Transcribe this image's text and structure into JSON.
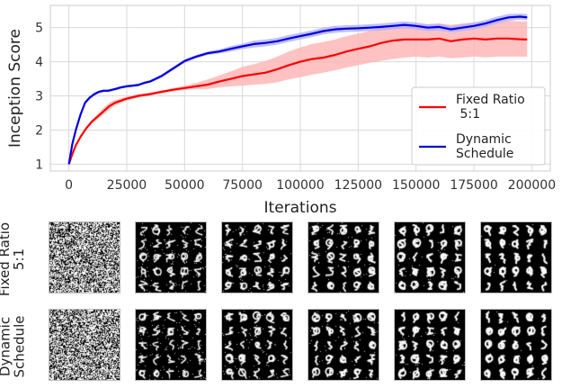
{
  "chart_data": {
    "type": "line",
    "xlabel": "Iterations",
    "ylabel": "Inception Score",
    "xlim": [
      -8000,
      208000
    ],
    "ylim": [
      0.8,
      5.65
    ],
    "xticks": [
      "0",
      "25000",
      "50000",
      "75000",
      "100000",
      "125000",
      "150000",
      "175000",
      "200000"
    ],
    "yticks": [
      "1",
      "2",
      "3",
      "4",
      "5"
    ],
    "grid": true,
    "legend_position": "bottom-right",
    "series": [
      {
        "name": "Fixed Ratio\n 5:1",
        "color": "#ff0000",
        "band_color": "#ffb3b3",
        "x": [
          0,
          1500,
          3000,
          5000,
          7500,
          10000,
          12500,
          15000,
          17500,
          20000,
          25000,
          30000,
          35000,
          40000,
          45000,
          50000,
          55000,
          60000,
          65000,
          70000,
          75000,
          80000,
          85000,
          90000,
          95000,
          100000,
          105000,
          110000,
          115000,
          120000,
          125000,
          130000,
          135000,
          140000,
          145000,
          150000,
          155000,
          160000,
          165000,
          170000,
          175000,
          180000,
          185000,
          190000,
          195000,
          198000
        ],
        "y": [
          1.0,
          1.3,
          1.55,
          1.8,
          2.05,
          2.25,
          2.4,
          2.55,
          2.7,
          2.8,
          2.92,
          3.0,
          3.05,
          3.12,
          3.18,
          3.23,
          3.28,
          3.33,
          3.42,
          3.5,
          3.58,
          3.63,
          3.68,
          3.78,
          3.9,
          4.0,
          4.08,
          4.12,
          4.2,
          4.3,
          4.38,
          4.45,
          4.55,
          4.62,
          4.65,
          4.65,
          4.65,
          4.68,
          4.6,
          4.65,
          4.68,
          4.65,
          4.68,
          4.68,
          4.66,
          4.65
        ],
        "lower": [
          1.0,
          1.25,
          1.5,
          1.75,
          2.0,
          2.2,
          2.33,
          2.45,
          2.6,
          2.72,
          2.86,
          2.95,
          3.0,
          3.08,
          3.13,
          3.17,
          3.2,
          3.2,
          3.25,
          3.28,
          3.3,
          3.33,
          3.35,
          3.4,
          3.48,
          3.55,
          3.62,
          3.68,
          3.75,
          3.83,
          3.9,
          3.97,
          4.03,
          4.08,
          4.12,
          4.15,
          4.12,
          4.15,
          4.1,
          4.12,
          4.15,
          4.13,
          4.15,
          4.15,
          4.15,
          4.15
        ],
        "upper": [
          1.0,
          1.35,
          1.6,
          1.85,
          2.1,
          2.3,
          2.47,
          2.65,
          2.8,
          2.88,
          2.98,
          3.05,
          3.1,
          3.16,
          3.23,
          3.3,
          3.38,
          3.48,
          3.6,
          3.72,
          3.85,
          3.93,
          4.02,
          4.15,
          4.3,
          4.42,
          4.52,
          4.58,
          4.65,
          4.75,
          4.83,
          4.9,
          5.0,
          5.05,
          5.08,
          5.1,
          5.1,
          5.12,
          5.08,
          5.12,
          5.15,
          5.15,
          5.18,
          5.2,
          5.18,
          5.18
        ]
      },
      {
        "name": "Dynamic\nSchedule",
        "color": "#0000dd",
        "band_color": "#b0b0ff",
        "x": [
          0,
          1500,
          3000,
          5000,
          7000,
          9000,
          11000,
          13000,
          15000,
          17000,
          20000,
          22500,
          25000,
          27500,
          30000,
          32500,
          35000,
          40000,
          45000,
          50000,
          55000,
          60000,
          65000,
          70000,
          75000,
          80000,
          85000,
          90000,
          95000,
          100000,
          105000,
          110000,
          115000,
          120000,
          125000,
          130000,
          135000,
          140000,
          145000,
          150000,
          155000,
          160000,
          165000,
          170000,
          175000,
          180000,
          185000,
          190000,
          195000,
          198000
        ],
        "y": [
          1.0,
          1.6,
          2.0,
          2.45,
          2.8,
          2.95,
          3.05,
          3.12,
          3.15,
          3.15,
          3.2,
          3.25,
          3.28,
          3.3,
          3.32,
          3.38,
          3.42,
          3.58,
          3.8,
          4.02,
          4.15,
          4.25,
          4.3,
          4.38,
          4.45,
          4.52,
          4.55,
          4.6,
          4.68,
          4.75,
          4.82,
          4.9,
          4.95,
          4.97,
          4.98,
          5.0,
          5.02,
          5.05,
          5.08,
          5.05,
          5.0,
          5.02,
          4.95,
          5.0,
          5.05,
          5.12,
          5.22,
          5.3,
          5.32,
          5.3
        ],
        "lower": [
          1.0,
          1.55,
          1.95,
          2.4,
          2.75,
          2.9,
          3.0,
          3.08,
          3.11,
          3.11,
          3.16,
          3.21,
          3.24,
          3.26,
          3.28,
          3.34,
          3.38,
          3.53,
          3.75,
          3.97,
          4.1,
          4.2,
          4.24,
          4.3,
          4.37,
          4.42,
          4.45,
          4.5,
          4.58,
          4.65,
          4.72,
          4.8,
          4.85,
          4.87,
          4.88,
          4.9,
          4.92,
          4.95,
          4.98,
          4.95,
          4.9,
          4.92,
          4.86,
          4.9,
          4.95,
          5.02,
          5.12,
          5.2,
          5.23,
          5.22
        ],
        "upper": [
          1.0,
          1.65,
          2.05,
          2.5,
          2.85,
          3.0,
          3.1,
          3.16,
          3.19,
          3.19,
          3.24,
          3.29,
          3.32,
          3.34,
          3.36,
          3.42,
          3.46,
          3.63,
          3.85,
          4.07,
          4.2,
          4.3,
          4.36,
          4.46,
          4.53,
          4.62,
          4.65,
          4.7,
          4.78,
          4.85,
          4.92,
          5.0,
          5.05,
          5.07,
          5.08,
          5.1,
          5.12,
          5.15,
          5.18,
          5.15,
          5.1,
          5.12,
          5.04,
          5.1,
          5.15,
          5.22,
          5.32,
          5.4,
          5.41,
          5.4
        ]
      }
    ]
  },
  "samples": {
    "rows": [
      {
        "label": "Fixed Ratio\n5:1",
        "tiles": 6
      },
      {
        "label": "Dynamic\nSchedule",
        "tiles": 6
      }
    ]
  }
}
